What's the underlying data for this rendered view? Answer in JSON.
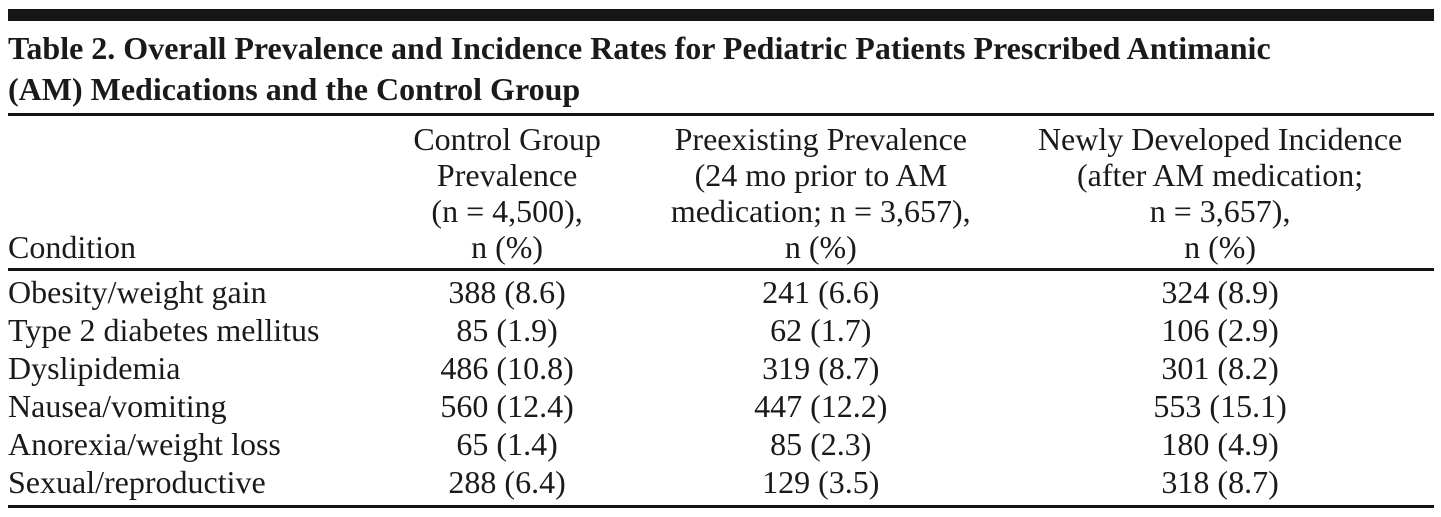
{
  "page": {
    "title_lines": [
      "Table 2. Overall Prevalence and Incidence Rates for Pediatric Patients Prescribed Antimanic",
      "(AM) Medications and the Control Group"
    ]
  },
  "table": {
    "header_lines": {
      "condition": [
        "Condition"
      ],
      "control": [
        "Control Group",
        "Prevalence",
        "(n = 4,500),",
        "n (%)"
      ],
      "preexisting": [
        "Preexisting Prevalence",
        "(24 mo prior to AM",
        "medication; n = 3,657),",
        "n (%)"
      ],
      "newly": [
        "Newly Developed Incidence",
        "(after AM medication;",
        "n = 3,657),",
        "n (%)"
      ]
    }
  },
  "chart_data": {
    "type": "table",
    "title": "Table 2. Overall Prevalence and Incidence Rates for Pediatric Patients Prescribed Antimanic (AM) Medications and the Control Group",
    "columns": [
      "Condition",
      "Control Group Prevalence (n = 4,500), n (%)",
      "Preexisting Prevalence (24 mo prior to AM medication; n = 3,657), n (%)",
      "Newly Developed Incidence (after AM medication; n = 3,657), n (%)"
    ],
    "rows": [
      [
        "Obesity/weight gain",
        "388 (8.6)",
        "241 (6.6)",
        "324 (8.9)"
      ],
      [
        "Type 2 diabetes mellitus",
        "85 (1.9)",
        "62 (1.7)",
        "106 (2.9)"
      ],
      [
        "Dyslipidemia",
        "486 (10.8)",
        "319 (8.7)",
        "301 (8.2)"
      ],
      [
        "Nausea/vomiting",
        "560 (12.4)",
        "447 (12.2)",
        "553 (15.1)"
      ],
      [
        "Anorexia/weight loss",
        "65 (1.4)",
        "85 (2.3)",
        "180 (4.9)"
      ],
      [
        "Sexual/reproductive",
        "288 (6.4)",
        "129 (3.5)",
        "318 (8.7)"
      ]
    ]
  }
}
